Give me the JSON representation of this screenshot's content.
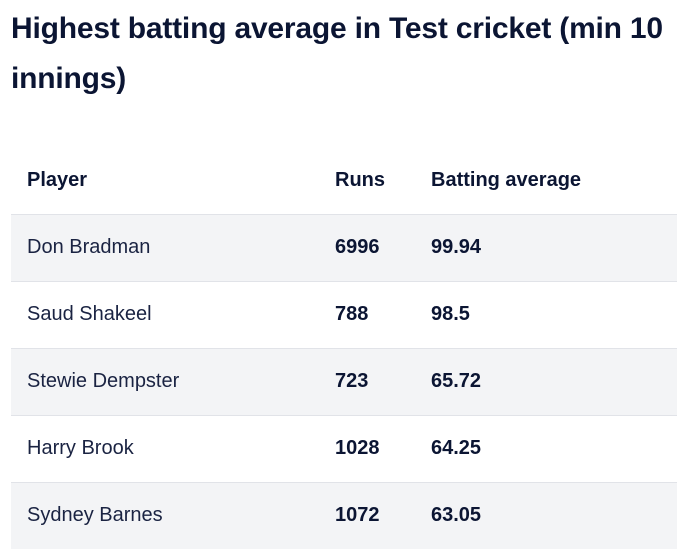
{
  "title": "Highest batting average in Test cricket (min 10 innings)",
  "table": {
    "headers": {
      "player": "Player",
      "runs": "Runs",
      "average": "Batting average"
    },
    "rows": [
      {
        "player": "Don Bradman",
        "runs": "6996",
        "average": "99.94"
      },
      {
        "player": "Saud Shakeel",
        "runs": "788",
        "average": "98.5"
      },
      {
        "player": "Stewie Dempster",
        "runs": "723",
        "average": "65.72"
      },
      {
        "player": "Harry Brook",
        "runs": "1028",
        "average": "64.25"
      },
      {
        "player": "Sydney Barnes",
        "runs": "1072",
        "average": "63.05"
      }
    ]
  },
  "colors": {
    "text": "#0b1533",
    "stripe": "#f3f4f6",
    "divider": "#e1e3e8"
  }
}
